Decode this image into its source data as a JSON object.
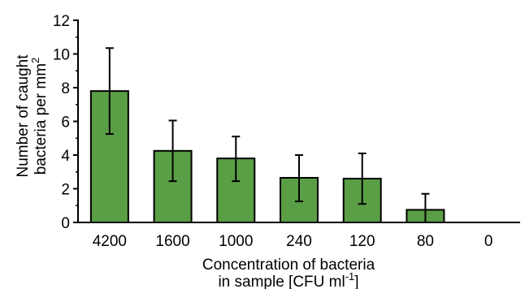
{
  "chart_data": {
    "type": "bar",
    "categories": [
      "4200",
      "1600",
      "1000",
      "240",
      "120",
      "80",
      "0"
    ],
    "values": [
      7.8,
      4.25,
      3.8,
      2.65,
      2.6,
      0.75,
      0
    ],
    "error_low": [
      5.25,
      2.45,
      2.45,
      1.25,
      1.1,
      0,
      0
    ],
    "error_high": [
      10.35,
      6.05,
      5.1,
      4.0,
      4.1,
      1.7,
      0
    ],
    "xlabel_line1": "Concentration of bacteria",
    "xlabel_line2": "in sample [CFU ml",
    "xlabel_sup": "-1",
    "xlabel_end": "]",
    "ylabel_line1": "Number of caught",
    "ylabel_line2": "bacteria per mm",
    "ylabel_sup": "2",
    "ylim": [
      0,
      12
    ],
    "yticks": [
      "0",
      "2",
      "4",
      "6",
      "8",
      "10",
      "12"
    ],
    "bar_color": "#5a9e46",
    "bar_edge_color": "#000000",
    "grid": false,
    "legend": "none"
  }
}
